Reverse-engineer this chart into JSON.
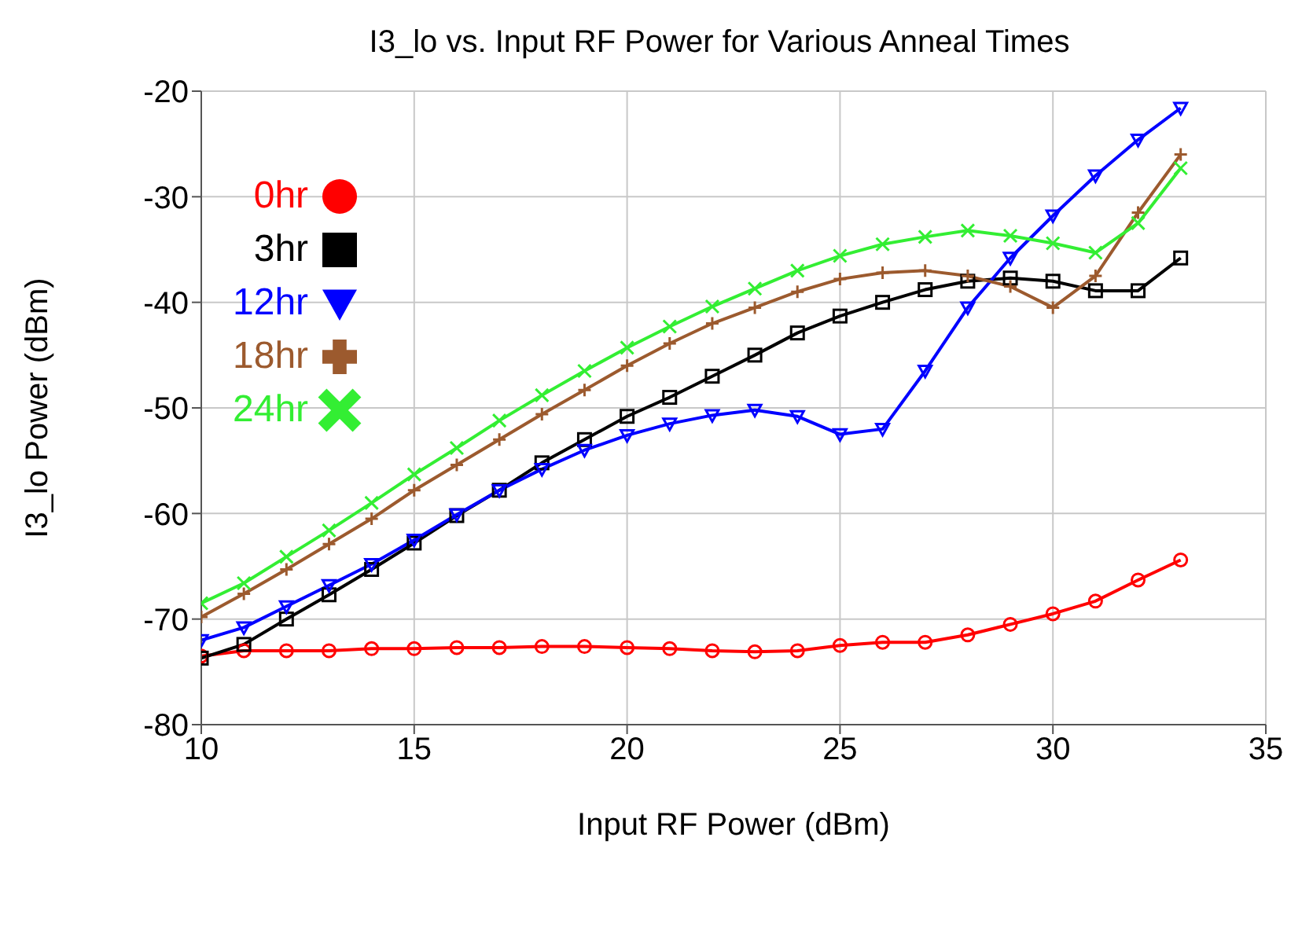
{
  "chart_data": {
    "type": "line",
    "title": "I3_lo vs. Input RF Power for Various Anneal Times",
    "xlabel": "Input RF Power (dBm)",
    "ylabel": "I3_lo Power (dBm)",
    "x": [
      10,
      11,
      12,
      13,
      14,
      15,
      16,
      17,
      18,
      19,
      20,
      21,
      22,
      23,
      24,
      25,
      26,
      27,
      28,
      29,
      30,
      31,
      32,
      33
    ],
    "xlim": [
      10,
      35
    ],
    "xticks": [
      10,
      15,
      20,
      25,
      30,
      35
    ],
    "ylim": [
      -80,
      -20
    ],
    "yticks": [
      -80,
      -70,
      -60,
      -50,
      -40,
      -30,
      -20
    ],
    "grid": true,
    "legend": "top left",
    "series": [
      {
        "name": "0hr",
        "color": "#ff0000",
        "marker": "circle",
        "values": [
          -73.5,
          -73,
          -73,
          -73,
          -72.8,
          -72.8,
          -72.7,
          -72.7,
          -72.6,
          -72.6,
          -72.7,
          -72.8,
          -73,
          -73.1,
          -73,
          -72.5,
          -72.2,
          -72.2,
          -71.5,
          -70.5,
          -69.5,
          -68.3,
          -66.3,
          -64.4
        ]
      },
      {
        "name": "3hr",
        "color": "#000000",
        "marker": "square",
        "values": [
          -73.7,
          -72.4,
          -70,
          -67.7,
          -65.3,
          -62.8,
          -60.2,
          -57.8,
          -55.2,
          -53,
          -50.8,
          -49,
          -47,
          -45,
          -42.9,
          -41.3,
          -40,
          -38.8,
          -38,
          -37.7,
          -38,
          -38.9,
          -38.9,
          -35.8
        ]
      },
      {
        "name": "12hr",
        "color": "#0000ff",
        "marker": "triangle",
        "values": [
          -72,
          -70.8,
          -68.8,
          -66.8,
          -64.8,
          -62.5,
          -60.1,
          -57.8,
          -55.8,
          -54,
          -52.6,
          -51.5,
          -50.7,
          -50.2,
          -50.8,
          -52.5,
          -52,
          -46.5,
          -40.5,
          -35.8,
          -31.8,
          -28,
          -24.6,
          -21.6
        ]
      },
      {
        "name": "18hr",
        "color": "#9c5a2e",
        "marker": "cross",
        "values": [
          -69.8,
          -67.6,
          -65.3,
          -62.9,
          -60.5,
          -57.8,
          -55.4,
          -53,
          -50.6,
          -48.3,
          -46,
          -43.9,
          -42,
          -40.5,
          -39,
          -37.8,
          -37.2,
          -37,
          -37.5,
          -38.5,
          -40.5,
          -37.5,
          -31.5,
          -26
        ]
      },
      {
        "name": "24hr",
        "color": "#33ee33",
        "marker": "x",
        "values": [
          -68.5,
          -66.6,
          -64.1,
          -61.6,
          -59,
          -56.3,
          -53.8,
          -51.2,
          -48.8,
          -46.5,
          -44.3,
          -42.3,
          -40.4,
          -38.7,
          -37,
          -35.6,
          -34.5,
          -33.8,
          -33.2,
          -33.7,
          -34.4,
          -35.3,
          -32.5,
          -27.3
        ]
      }
    ]
  }
}
